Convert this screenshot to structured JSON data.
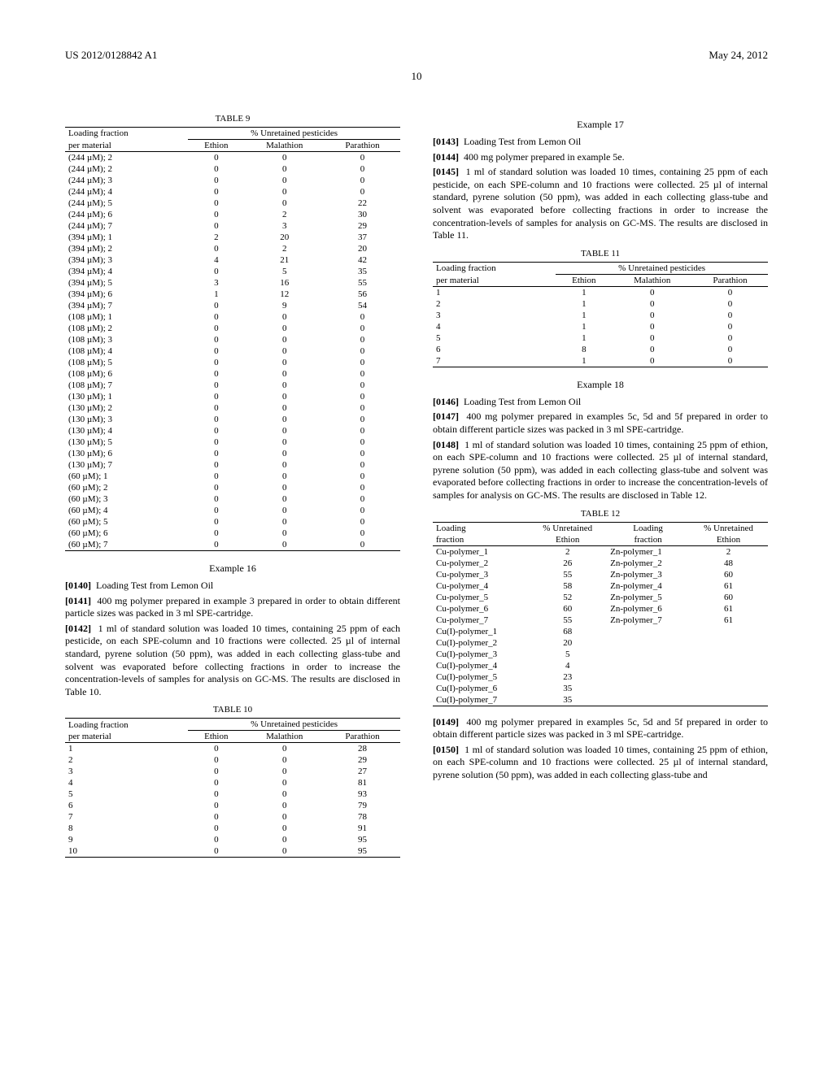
{
  "header": {
    "left": "US 2012/0128842 A1",
    "right": "May 24, 2012"
  },
  "page_number": "10",
  "table9": {
    "caption": "TABLE 9",
    "group_header": "% Unretained pesticides",
    "col1_l1": "Loading fraction",
    "col1_l2": "per material",
    "cols": [
      "Ethion",
      "Malathion",
      "Parathion"
    ],
    "rows": [
      [
        "(244 µM); 2",
        "0",
        "0",
        "0"
      ],
      [
        "(244 µM); 2",
        "0",
        "0",
        "0"
      ],
      [
        "(244 µM); 3",
        "0",
        "0",
        "0"
      ],
      [
        "(244 µM); 4",
        "0",
        "0",
        "0"
      ],
      [
        "(244 µM); 5",
        "0",
        "0",
        "22"
      ],
      [
        "(244 µM); 6",
        "0",
        "2",
        "30"
      ],
      [
        "(244 µM); 7",
        "0",
        "3",
        "29"
      ],
      [
        "(394 µM); 1",
        "2",
        "20",
        "37"
      ],
      [
        "(394 µM); 2",
        "0",
        "2",
        "20"
      ],
      [
        "(394 µM); 3",
        "4",
        "21",
        "42"
      ],
      [
        "(394 µM); 4",
        "0",
        "5",
        "35"
      ],
      [
        "(394 µM); 5",
        "3",
        "16",
        "55"
      ],
      [
        "(394 µM); 6",
        "1",
        "12",
        "56"
      ],
      [
        "(394 µM); 7",
        "0",
        "9",
        "54"
      ],
      [
        "(108 µM); 1",
        "0",
        "0",
        "0"
      ],
      [
        "(108 µM); 2",
        "0",
        "0",
        "0"
      ],
      [
        "(108 µM); 3",
        "0",
        "0",
        "0"
      ],
      [
        "(108 µM); 4",
        "0",
        "0",
        "0"
      ],
      [
        "(108 µM); 5",
        "0",
        "0",
        "0"
      ],
      [
        "(108 µM); 6",
        "0",
        "0",
        "0"
      ],
      [
        "(108 µM); 7",
        "0",
        "0",
        "0"
      ],
      [
        "(130 µM); 1",
        "0",
        "0",
        "0"
      ],
      [
        "(130 µM); 2",
        "0",
        "0",
        "0"
      ],
      [
        "(130 µM); 3",
        "0",
        "0",
        "0"
      ],
      [
        "(130 µM); 4",
        "0",
        "0",
        "0"
      ],
      [
        "(130 µM); 5",
        "0",
        "0",
        "0"
      ],
      [
        "(130 µM); 6",
        "0",
        "0",
        "0"
      ],
      [
        "(130 µM); 7",
        "0",
        "0",
        "0"
      ],
      [
        "(60 µM); 1",
        "0",
        "0",
        "0"
      ],
      [
        "(60 µM); 2",
        "0",
        "0",
        "0"
      ],
      [
        "(60 µM); 3",
        "0",
        "0",
        "0"
      ],
      [
        "(60 µM); 4",
        "0",
        "0",
        "0"
      ],
      [
        "(60 µM); 5",
        "0",
        "0",
        "0"
      ],
      [
        "(60 µM); 6",
        "0",
        "0",
        "0"
      ],
      [
        "(60 µM); 7",
        "0",
        "0",
        "0"
      ]
    ]
  },
  "example16": {
    "title": "Example 16",
    "p0140": "Loading Test from Lemon Oil",
    "p0141": "400 mg polymer prepared in example 3 prepared in order to obtain different particle sizes was packed in 3 ml SPE-cartridge.",
    "p0142": "1 ml of standard solution was loaded 10 times, containing 25 ppm of each pesticide, on each SPE-column and 10 fractions were collected. 25 µl of internal standard, pyrene solution (50 ppm), was added in each collecting glass-tube and solvent was evaporated before collecting fractions in order to increase the concentration-levels of samples for analysis on GC-MS. The results are disclosed in Table 10."
  },
  "table10": {
    "caption": "TABLE 10",
    "group_header": "% Unretained pesticides",
    "col1_l1": "Loading fraction",
    "col1_l2": "per material",
    "cols": [
      "Ethion",
      "Malathion",
      "Parathion"
    ],
    "rows": [
      [
        "1",
        "0",
        "0",
        "28"
      ],
      [
        "2",
        "0",
        "0",
        "29"
      ],
      [
        "3",
        "0",
        "0",
        "27"
      ],
      [
        "4",
        "0",
        "0",
        "81"
      ],
      [
        "5",
        "0",
        "0",
        "93"
      ],
      [
        "6",
        "0",
        "0",
        "79"
      ],
      [
        "7",
        "0",
        "0",
        "78"
      ],
      [
        "8",
        "0",
        "0",
        "91"
      ],
      [
        "9",
        "0",
        "0",
        "95"
      ],
      [
        "10",
        "0",
        "0",
        "95"
      ]
    ]
  },
  "example17": {
    "title": "Example 17",
    "p0143": "Loading Test from Lemon Oil",
    "p0144": "400 mg polymer prepared in example 5e.",
    "p0145": "1 ml of standard solution was loaded 10 times, containing 25 ppm of each pesticide, on each SPE-column and 10 fractions were collected. 25 µl of internal standard, pyrene solution (50 ppm), was added in each collecting glass-tube and solvent was evaporated before collecting fractions in order to increase the concentration-levels of samples for analysis on GC-MS. The results are disclosed in Table 11."
  },
  "table11": {
    "caption": "TABLE 11",
    "group_header": "% Unretained pesticides",
    "col1_l1": "Loading fraction",
    "col1_l2": "per material",
    "cols": [
      "Ethion",
      "Malathion",
      "Parathion"
    ],
    "rows": [
      [
        "1",
        "1",
        "0",
        "0"
      ],
      [
        "2",
        "1",
        "0",
        "0"
      ],
      [
        "3",
        "1",
        "0",
        "0"
      ],
      [
        "4",
        "1",
        "0",
        "0"
      ],
      [
        "5",
        "1",
        "0",
        "0"
      ],
      [
        "6",
        "8",
        "0",
        "0"
      ],
      [
        "7",
        "1",
        "0",
        "0"
      ]
    ]
  },
  "example18": {
    "title": "Example 18",
    "p0146": "Loading Test from Lemon Oil",
    "p0147": "400 mg polymer prepared in examples 5c, 5d and 5f prepared in order to obtain different particle sizes was packed in 3 ml SPE-cartridge.",
    "p0148": "1 ml of standard solution was loaded 10 times, containing 25 ppm of ethion, on each SPE-column and 10 fractions were collected. 25 µl of internal standard, pyrene solution (50 ppm), was added in each collecting glass-tube and solvent was evaporated before collecting fractions in order to increase the concentration-levels of samples for analysis on GC-MS. The results are disclosed in Table 12."
  },
  "table12": {
    "caption": "TABLE 12",
    "head_l1_c1": "Loading",
    "head_l1_c2": "% Unretained",
    "head_l1_c3": "Loading",
    "head_l1_c4": "% Unretained",
    "head_l2_c1": "fraction",
    "head_l2_c2": "Ethion",
    "head_l2_c3": "fraction",
    "head_l2_c4": "Ethion",
    "rows": [
      [
        "Cu-polymer_1",
        "2",
        "Zn-polymer_1",
        "2"
      ],
      [
        "Cu-polymer_2",
        "26",
        "Zn-polymer_2",
        "48"
      ],
      [
        "Cu-polymer_3",
        "55",
        "Zn-polymer_3",
        "60"
      ],
      [
        "Cu-polymer_4",
        "58",
        "Zn-polymer_4",
        "61"
      ],
      [
        "Cu-polymer_5",
        "52",
        "Zn-polymer_5",
        "60"
      ],
      [
        "Cu-polymer_6",
        "60",
        "Zn-polymer_6",
        "61"
      ],
      [
        "Cu-polymer_7",
        "55",
        "Zn-polymer_7",
        "61"
      ],
      [
        "Cu(I)-polymer_1",
        "68",
        "",
        ""
      ],
      [
        "Cu(I)-polymer_2",
        "20",
        "",
        ""
      ],
      [
        "Cu(I)-polymer_3",
        "5",
        "",
        ""
      ],
      [
        "Cu(I)-polymer_4",
        "4",
        "",
        ""
      ],
      [
        "Cu(I)-polymer_5",
        "23",
        "",
        ""
      ],
      [
        "Cu(I)-polymer_6",
        "35",
        "",
        ""
      ],
      [
        "Cu(I)-polymer_7",
        "35",
        "",
        ""
      ]
    ]
  },
  "trailing": {
    "p0149": "400 mg polymer prepared in examples 5c, 5d and 5f prepared in order to obtain different particle sizes was packed in 3 ml SPE-cartridge.",
    "p0150": "1 ml of standard solution was loaded 10 times, containing 25 ppm of ethion, on each SPE-column and 10 fractions were collected. 25 µl of internal standard, pyrene solution (50 ppm), was added in each collecting glass-tube and"
  },
  "labels": {
    "n0140": "[0140]",
    "n0141": "[0141]",
    "n0142": "[0142]",
    "n0143": "[0143]",
    "n0144": "[0144]",
    "n0145": "[0145]",
    "n0146": "[0146]",
    "n0147": "[0147]",
    "n0148": "[0148]",
    "n0149": "[0149]",
    "n0150": "[0150]"
  }
}
